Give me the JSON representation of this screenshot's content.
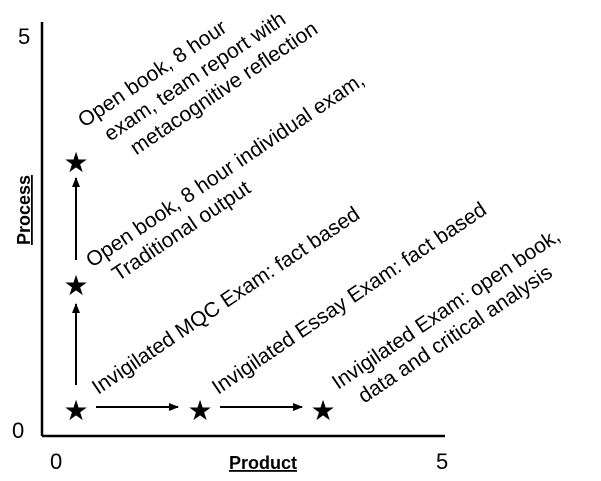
{
  "axes": {
    "x_label": "Product",
    "y_label": "Process",
    "x_min_label": "0",
    "x_max_label": "5",
    "y_min_label": "0",
    "y_max_label": "5"
  },
  "nodes": {
    "mcq": {
      "symbol": "★",
      "line1": "Invigilated MQC Exam: fact based",
      "line2": ""
    },
    "essay": {
      "symbol": "★",
      "line1": "Invigilated Essay Exam: fact based",
      "line2": ""
    },
    "open_critical": {
      "symbol": "★",
      "line1": "Invigilated Exam: open book,",
      "line2": "data and critical analysis"
    },
    "open_individual": {
      "symbol": "★",
      "line1": "Open book, 8 hour individual exam,",
      "line2": "Traditional output"
    },
    "open_team": {
      "symbol": "★",
      "line1": "Open book, 8 hour",
      "line2": "exam, team report with",
      "line3": "metacognitive reflection"
    }
  }
}
